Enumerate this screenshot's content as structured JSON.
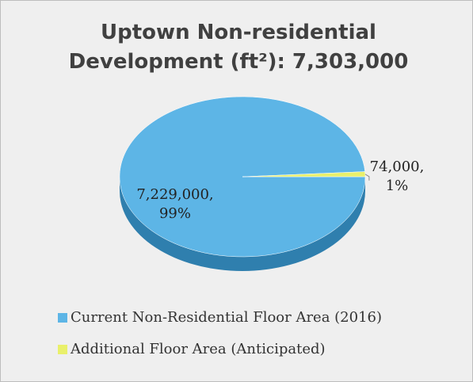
{
  "chart_data": {
    "type": "pie",
    "title": "Uptown Non-residential Development (ft²): 7,303,000",
    "categories": [
      "Current Non-Residential Floor Area (2016)",
      "Additional Floor Area (Anticipated)"
    ],
    "values": [
      7229000,
      74000
    ],
    "value_labels": [
      "7,229,000, 99%",
      "74,000, 1%"
    ],
    "colors": [
      "#5db5e6",
      "#e9f06b"
    ],
    "legend": "bottom"
  }
}
